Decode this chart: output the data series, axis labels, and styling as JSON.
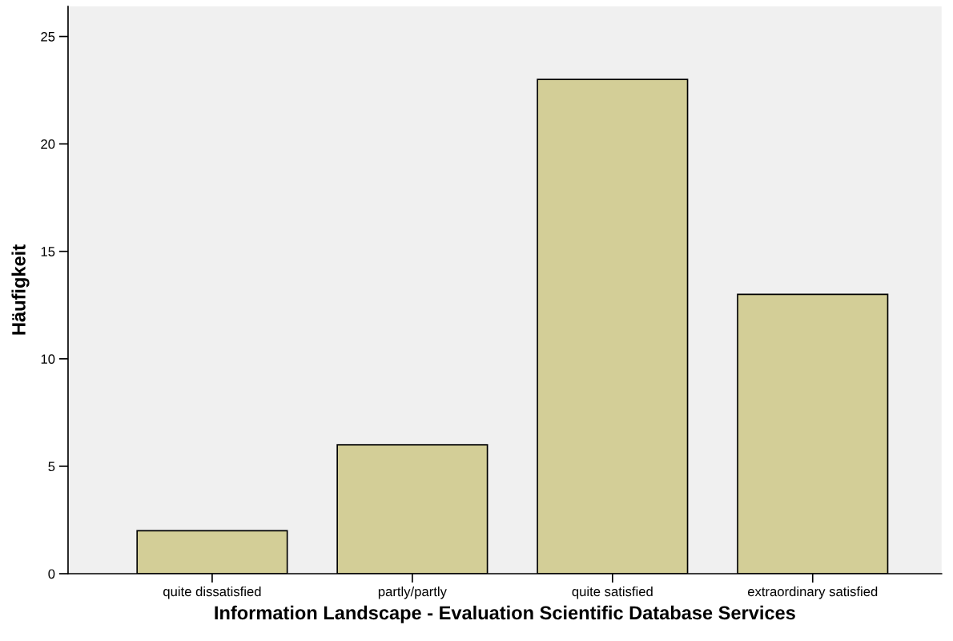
{
  "chart_data": {
    "type": "bar",
    "xlabel": "Information Landscape - Evaluation Scientific Database Services",
    "ylabel": "Häufigkeit",
    "categories": [
      "quite dissatisfied",
      "partly/partly",
      "quite satisfied",
      "extraordinary satisfied"
    ],
    "values": [
      2,
      6,
      23,
      13
    ],
    "color": "#d3ce97",
    "ylim": [
      0,
      26.4
    ],
    "yticks": [
      0,
      5,
      10,
      15,
      20,
      25
    ],
    "grid": false,
    "legend": false
  }
}
